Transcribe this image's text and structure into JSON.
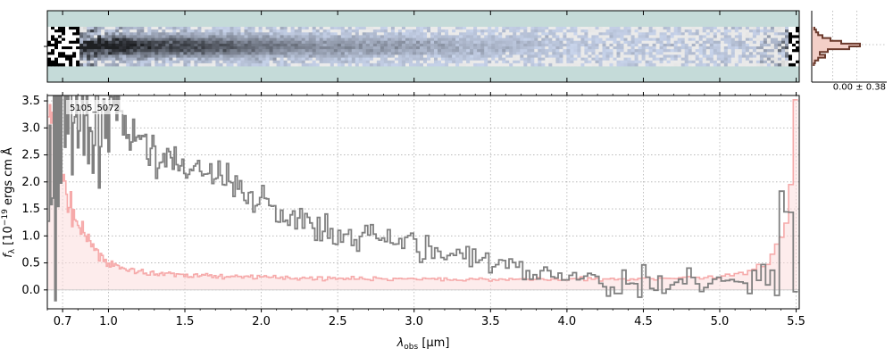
{
  "chart_data": {
    "type": "line",
    "spectrum_id": "5105_5072",
    "xlabel_main": "λ",
    "xlabel_sub": "obs",
    "xlabel_unit": " [μm]",
    "ylabel_main": "f",
    "ylabel_sub": "λ",
    "ylabel_unit": " [10",
    "ylabel_exp": "−19",
    "ylabel_units_text": " ergs",
    "ylabel_units_tail": "cm",
    "ylabel_units_tail2": "Å",
    "x_ticks": [
      {
        "v": 0.7,
        "label": "0.7"
      },
      {
        "v": 1.0,
        "label": "1.0"
      },
      {
        "v": 1.5,
        "label": "1.5"
      },
      {
        "v": 2.0,
        "label": "2.0"
      },
      {
        "v": 2.5,
        "label": "2.5"
      },
      {
        "v": 3.0,
        "label": "3.0"
      },
      {
        "v": 3.5,
        "label": "3.5"
      },
      {
        "v": 4.0,
        "label": "4.0"
      },
      {
        "v": 4.5,
        "label": "4.5"
      },
      {
        "v": 5.0,
        "label": "5.0"
      },
      {
        "v": 5.5,
        "label": "5.5"
      }
    ],
    "y_ticks": [
      {
        "v": 0.0,
        "label": "0.0"
      },
      {
        "v": 0.5,
        "label": "0.5"
      },
      {
        "v": 1.0,
        "label": "1.0"
      },
      {
        "v": 1.5,
        "label": "1.5"
      },
      {
        "v": 2.0,
        "label": "2.0"
      },
      {
        "v": 2.5,
        "label": "2.5"
      },
      {
        "v": 3.0,
        "label": "3.0"
      },
      {
        "v": 3.5,
        "label": "3.5"
      }
    ],
    "xlim": [
      0.6,
      5.52
    ],
    "ylim": [
      -0.35,
      3.6
    ],
    "grid": true,
    "flux_anchors": [
      [
        0.6,
        1.2
      ],
      [
        0.65,
        2.2
      ],
      [
        0.7,
        3.4
      ],
      [
        0.75,
        3.3
      ],
      [
        0.8,
        3.4
      ],
      [
        0.85,
        3.0
      ],
      [
        0.9,
        2.8
      ],
      [
        1.0,
        3.3
      ],
      [
        1.1,
        3.1
      ],
      [
        1.2,
        2.7
      ],
      [
        1.4,
        2.4
      ],
      [
        1.6,
        2.2
      ],
      [
        1.8,
        2.0
      ],
      [
        2.0,
        1.6
      ],
      [
        2.2,
        1.35
      ],
      [
        2.4,
        1.1
      ],
      [
        2.6,
        1.0
      ],
      [
        2.8,
        0.95
      ],
      [
        3.0,
        0.85
      ],
      [
        3.2,
        0.65
      ],
      [
        3.4,
        0.55
      ],
      [
        3.6,
        0.45
      ],
      [
        3.8,
        0.35
      ],
      [
        4.0,
        0.2
      ],
      [
        4.2,
        0.15
      ],
      [
        4.5,
        0.12
      ],
      [
        4.8,
        0.1
      ],
      [
        5.0,
        0.12
      ],
      [
        5.2,
        0.1
      ],
      [
        5.35,
        0.15
      ],
      [
        5.42,
        0.5
      ],
      [
        5.46,
        1.5
      ],
      [
        5.5,
        1.8
      ]
    ],
    "error_anchors": [
      [
        0.6,
        3.5
      ],
      [
        0.65,
        2.8
      ],
      [
        0.7,
        2.0
      ],
      [
        0.75,
        1.55
      ],
      [
        0.8,
        1.2
      ],
      [
        0.85,
        0.95
      ],
      [
        0.9,
        0.8
      ],
      [
        0.95,
        0.65
      ],
      [
        1.0,
        0.5
      ],
      [
        1.1,
        0.38
      ],
      [
        1.3,
        0.3
      ],
      [
        1.6,
        0.26
      ],
      [
        2.0,
        0.24
      ],
      [
        2.5,
        0.21
      ],
      [
        3.0,
        0.2
      ],
      [
        3.5,
        0.19
      ],
      [
        4.0,
        0.2
      ],
      [
        4.5,
        0.21
      ],
      [
        5.0,
        0.24
      ],
      [
        5.2,
        0.32
      ],
      [
        5.35,
        0.6
      ],
      [
        5.42,
        1.0
      ],
      [
        5.48,
        2.0
      ],
      [
        5.5,
        3.5
      ]
    ],
    "noise_seed": 7,
    "side_panel_label": "0.00 ± 0.38",
    "colors": {
      "flux": "#808080",
      "error": "#f6aaaa",
      "error_fill": "#fbdcdc",
      "panel_bg": "#c5dbd9",
      "profile": "#6b3a2c",
      "profile_fill": "#f3cfc7"
    }
  }
}
